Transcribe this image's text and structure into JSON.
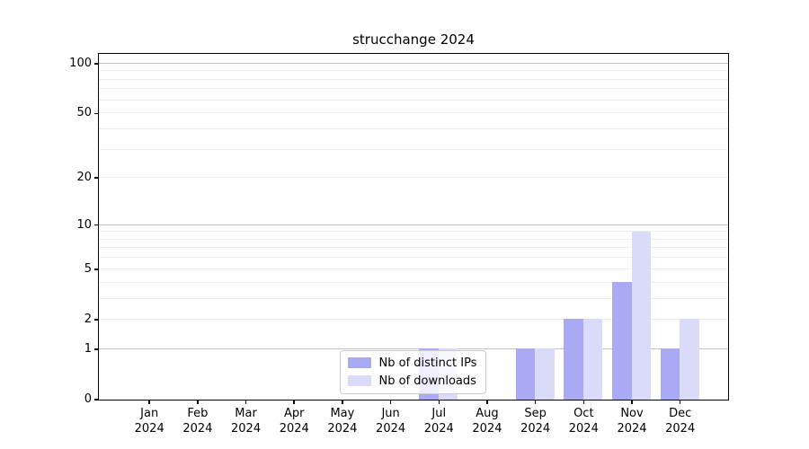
{
  "chart_data": {
    "type": "bar",
    "title": "strucchange 2024",
    "categories": [
      "Jan",
      "Feb",
      "Mar",
      "Apr",
      "May",
      "Jun",
      "Jul",
      "Aug",
      "Sep",
      "Oct",
      "Nov",
      "Dec"
    ],
    "category_year": "2024",
    "series": [
      {
        "name": "Nb of distinct IPs",
        "color": "#a9a9f4",
        "values": [
          0,
          0,
          0,
          0,
          0,
          0,
          1,
          0,
          1,
          2,
          4,
          1
        ]
      },
      {
        "name": "Nb of downloads",
        "color": "#dadaf9",
        "values": [
          0,
          0,
          0,
          0,
          0,
          0,
          1,
          0,
          1,
          2,
          9,
          2
        ]
      }
    ],
    "xlabel": "",
    "ylabel": "",
    "yscale": "log1p",
    "ylim": [
      0,
      114.5
    ],
    "yticks": [
      0,
      1,
      2,
      5,
      10,
      20,
      50,
      100
    ],
    "grid_major": [
      1,
      10,
      100
    ],
    "grid_minor": [
      2,
      3,
      4,
      5,
      6,
      7,
      8,
      9,
      20,
      30,
      40,
      50,
      60,
      70,
      80,
      90
    ],
    "grid": "on",
    "legend_position": "lower center-left inside plot",
    "colors": {
      "spine": "#000000",
      "grid_major": "#c3c3c3",
      "grid_minor": "#ededed",
      "legend_border": "#cccccc"
    }
  }
}
